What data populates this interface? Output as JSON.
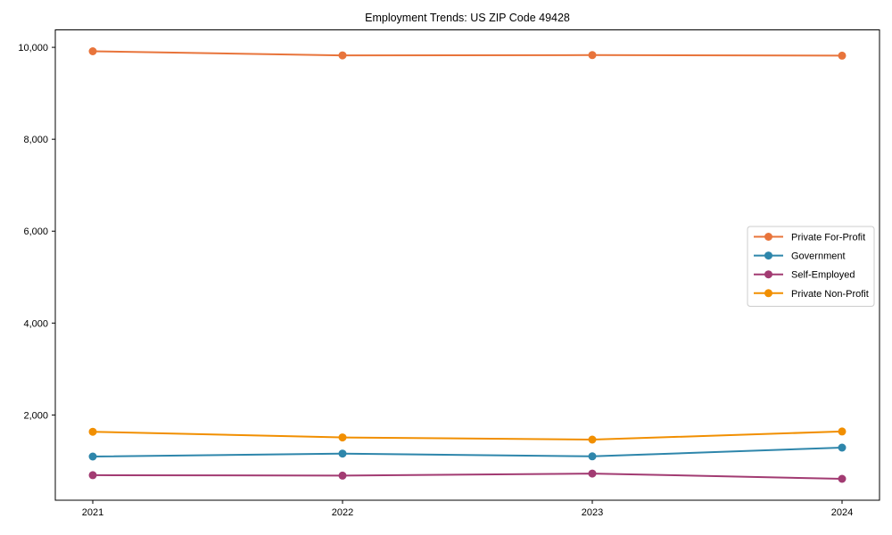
{
  "chart_data": {
    "type": "line",
    "title": "Employment Trends: US ZIP Code 49428",
    "x": [
      2021,
      2022,
      2023,
      2024
    ],
    "x_tick_labels": [
      "2021",
      "2022",
      "2023",
      "2024"
    ],
    "y_ticks": [
      2000,
      4000,
      6000,
      8000,
      10000
    ],
    "y_tick_labels": [
      "2,000",
      "4,000",
      "6,000",
      "8,000",
      "10,000"
    ],
    "xlim": [
      2020.85,
      2024.15
    ],
    "ylim": [
      145,
      10380
    ],
    "grid": false,
    "marker": "circle",
    "xlabel": "",
    "ylabel": "",
    "legend_position": "center-right",
    "series": [
      {
        "name": "Private For-Profit",
        "color": "#E8743B",
        "values": [
          9915,
          9825,
          9830,
          9820
        ]
      },
      {
        "name": "Government",
        "color": "#2E86AB",
        "values": [
          1095,
          1160,
          1100,
          1290
        ]
      },
      {
        "name": "Self-Employed",
        "color": "#A23B72",
        "values": [
          690,
          680,
          725,
          610
        ]
      },
      {
        "name": "Private Non-Profit",
        "color": "#F18F01",
        "values": [
          1635,
          1510,
          1465,
          1640
        ]
      }
    ],
    "axis_color": "#000000",
    "legend_border_color": "#cccccc",
    "legend_background": "#ffffff"
  }
}
